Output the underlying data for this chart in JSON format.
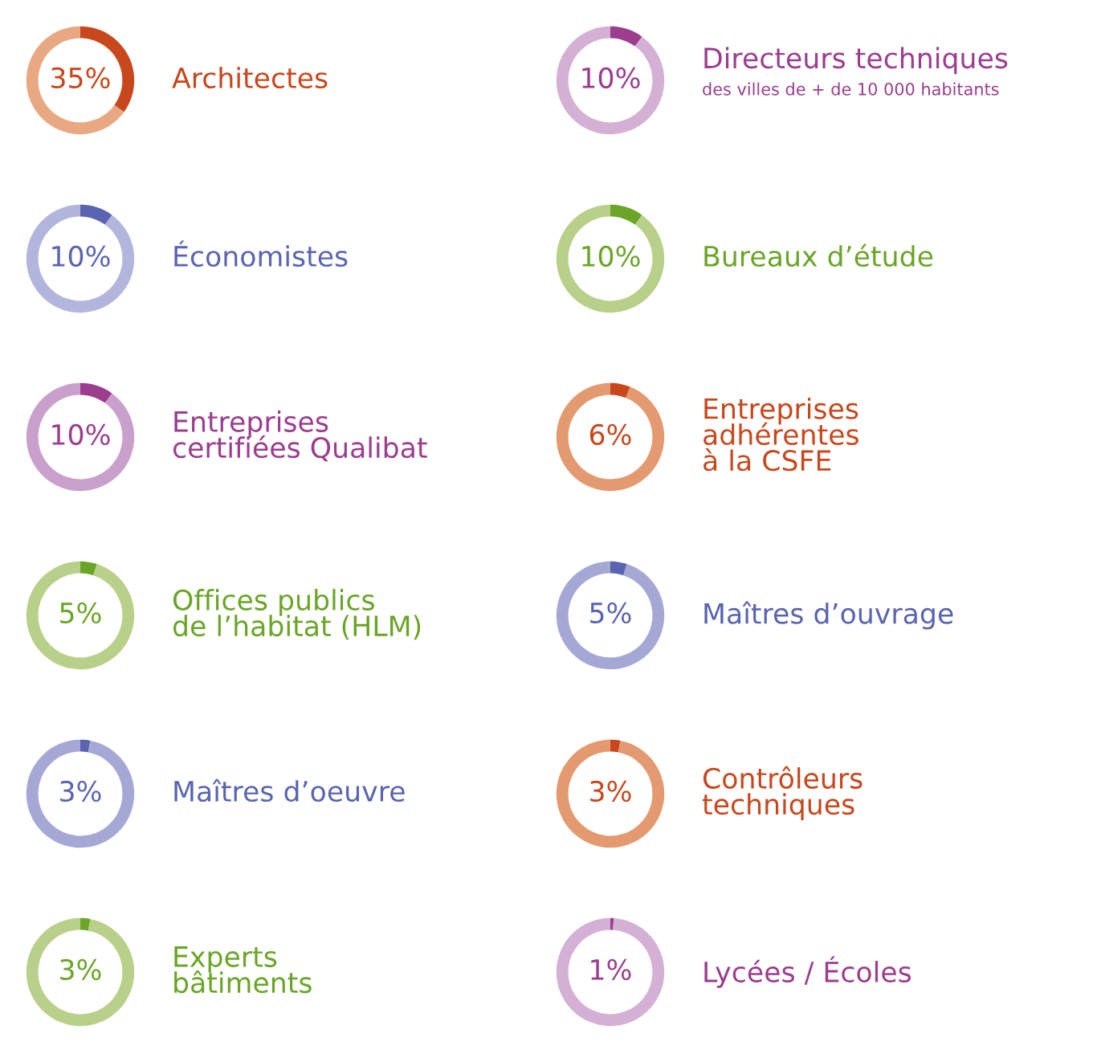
{
  "chart_data": [
    {
      "type": "donut",
      "title": "Architectes",
      "categories": [
        null,
        null
      ],
      "values": [
        35,
        65
      ],
      "colors": [
        "#c8471c",
        "#e8a882"
      ],
      "value_labels": [
        "35%",
        null
      ]
    },
    {
      "type": "donut",
      "title": "Directeurs techniques",
      "subtitle": "des villes de + de 10 000 habitants",
      "categories": [
        null,
        null
      ],
      "values": [
        10,
        90
      ],
      "colors": [
        "#9c3d8e",
        "#d4b0d4"
      ],
      "value_labels": [
        "10%",
        null
      ]
    },
    {
      "type": "donut",
      "title": "Économistes",
      "categories": [
        null,
        null
      ],
      "values": [
        10,
        90
      ],
      "colors": [
        "#5a64b0",
        "#b3b6dc"
      ],
      "value_labels": [
        "10%",
        null
      ]
    },
    {
      "type": "donut",
      "title": "Bureaux d’étude",
      "categories": [
        null,
        null
      ],
      "values": [
        10,
        90
      ],
      "colors": [
        "#6aa527",
        "#b9d08a"
      ],
      "value_labels": [
        "10%",
        null
      ]
    },
    {
      "type": "donut",
      "title": "Entreprises\ncertifiées Qualibat",
      "categories": [
        null,
        null
      ],
      "values": [
        10,
        90
      ],
      "colors": [
        "#9c3d8e",
        "#c9a0cb"
      ],
      "value_labels": [
        "10%",
        null
      ]
    },
    {
      "type": "donut",
      "title": "Entreprises\nadhérentes\nà la CSFE",
      "categories": [
        null,
        null
      ],
      "values": [
        6,
        94
      ],
      "colors": [
        "#c8471c",
        "#e49a70"
      ],
      "value_labels": [
        "6%",
        null
      ]
    },
    {
      "type": "donut",
      "title": "Offices publics\nde l’habitat (HLM)",
      "categories": [
        null,
        null
      ],
      "values": [
        5,
        95
      ],
      "colors": [
        "#6aa527",
        "#b9d08a"
      ],
      "value_labels": [
        "5%",
        null
      ]
    },
    {
      "type": "donut",
      "title": "Maîtres d’ouvrage",
      "categories": [
        null,
        null
      ],
      "values": [
        5,
        95
      ],
      "colors": [
        "#5a64b0",
        "#a5a8d4"
      ],
      "value_labels": [
        "5%",
        null
      ]
    },
    {
      "type": "donut",
      "title": "Maîtres d’oeuvre",
      "categories": [
        null,
        null
      ],
      "values": [
        3,
        97
      ],
      "colors": [
        "#5a64b0",
        "#a5a8d4"
      ],
      "value_labels": [
        "3%",
        null
      ]
    },
    {
      "type": "donut",
      "title": "Contrôleurs\ntechniques",
      "categories": [
        null,
        null
      ],
      "values": [
        3,
        97
      ],
      "colors": [
        "#c8471c",
        "#e49a70"
      ],
      "value_labels": [
        "3%",
        null
      ]
    },
    {
      "type": "donut",
      "title": "Experts\nbâtiments",
      "categories": [
        null,
        null
      ],
      "values": [
        3,
        97
      ],
      "colors": [
        "#6aa527",
        "#b9d08a"
      ],
      "value_labels": [
        "3%",
        null
      ]
    },
    {
      "type": "donut",
      "title": "Lycées / Écoles",
      "categories": [
        null,
        null
      ],
      "values": [
        1,
        99
      ],
      "colors": [
        "#9c3d8e",
        "#d4b0d4"
      ],
      "value_labels": [
        "1%",
        null
      ]
    }
  ]
}
